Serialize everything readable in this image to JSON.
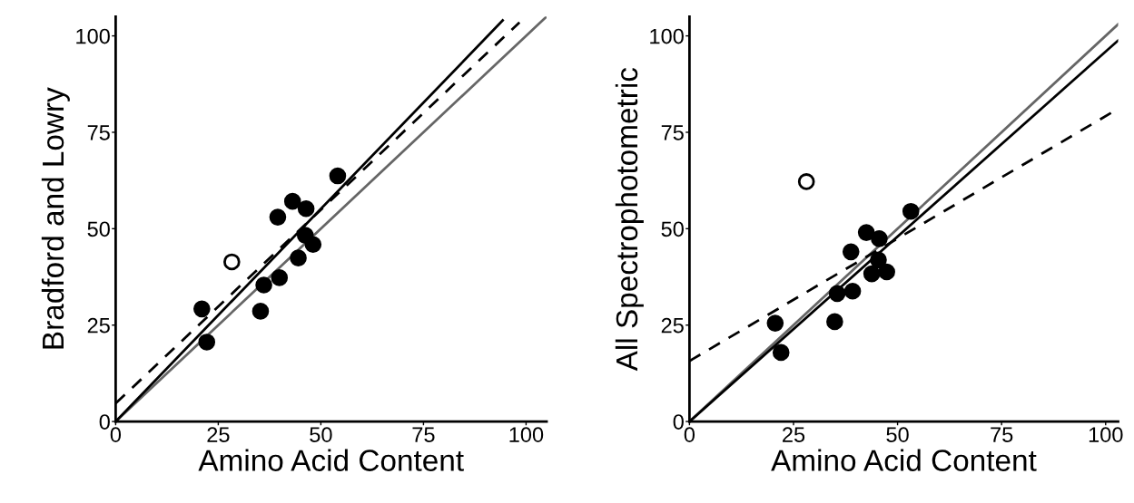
{
  "chart_data": [
    {
      "type": "scatter",
      "xlabel": "Amino Acid Content",
      "ylabel": "Bradford and Lowry",
      "xlim": [
        0,
        105
      ],
      "ylim": [
        0,
        105
      ],
      "xticks": [
        0,
        25,
        50,
        75,
        100
      ],
      "yticks": [
        0,
        25,
        50,
        75,
        100
      ],
      "grid": false,
      "series": [
        {
          "type": "line",
          "color": "#666666",
          "line_style": "solid",
          "marker": "none",
          "x": [
            0,
            105
          ],
          "values": [
            0,
            105
          ]
        },
        {
          "type": "line",
          "color": "#000000",
          "line_style": "solid",
          "marker": "none",
          "x": [
            0,
            94.3
          ],
          "values": [
            0,
            104
          ]
        },
        {
          "type": "line",
          "color": "#000000",
          "line_style": "dashed",
          "marker": "none",
          "x": [
            0,
            98.4
          ],
          "values": [
            4.7,
            103.5
          ]
        },
        {
          "color": "#000000",
          "marker": "circle",
          "x": [
            21.0,
            22.2,
            35.3,
            36.1,
            39.9,
            39.5,
            43.1,
            46.4,
            44.5,
            46.2,
            48.1,
            54.1
          ],
          "values": [
            29.2,
            20.6,
            28.6,
            35.4,
            37.3,
            53.0,
            57.1,
            55.2,
            42.4,
            48.3,
            45.9,
            63.7
          ]
        },
        {
          "color": "#ffffff",
          "marker": "circle",
          "x": [
            28.3
          ],
          "values": [
            41.4
          ]
        }
      ]
    },
    {
      "type": "scatter",
      "xlabel": "Amino Acid Content",
      "ylabel": "All Spectrophotometric",
      "xlim": [
        0,
        103
      ],
      "ylim": [
        0,
        105
      ],
      "xticks": [
        0,
        25,
        50,
        75,
        100
      ],
      "yticks": [
        0,
        25,
        50,
        75,
        100
      ],
      "grid": false,
      "series": [
        {
          "type": "line",
          "color": "#666666",
          "line_style": "solid",
          "marker": "none",
          "x": [
            0,
            103
          ],
          "values": [
            0,
            103
          ]
        },
        {
          "type": "line",
          "color": "#000000",
          "line_style": "solid",
          "marker": "none",
          "x": [
            0,
            103
          ],
          "values": [
            0,
            98.8
          ]
        },
        {
          "type": "line",
          "color": "#000000",
          "line_style": "dashed",
          "marker": "none",
          "x": [
            0,
            103
          ],
          "values": [
            15.7,
            81.1
          ]
        },
        {
          "color": "#000000",
          "marker": "circle",
          "x": [
            20.6,
            22.0,
            34.9,
            35.5,
            39.2,
            38.8,
            42.5,
            45.6,
            45.4,
            43.8,
            47.4,
            53.2
          ],
          "values": [
            25.5,
            17.9,
            25.9,
            33.2,
            33.8,
            44.0,
            49.0,
            47.4,
            41.9,
            38.3,
            38.8,
            54.5
          ]
        },
        {
          "color": "#ffffff",
          "marker": "circle",
          "x": [
            28.1
          ],
          "values": [
            62.2
          ]
        }
      ]
    }
  ]
}
